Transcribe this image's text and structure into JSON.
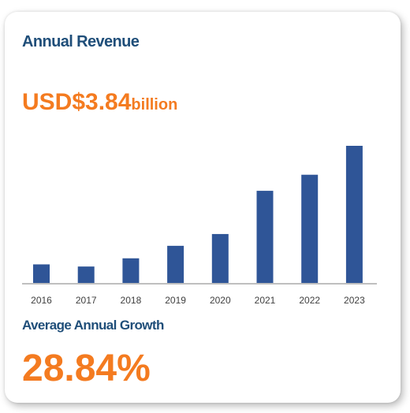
{
  "card": {
    "title": "Annual Revenue",
    "revenue_value": "USD$3.84",
    "revenue_unit": "billion",
    "growth_label": "Average Annual Growth",
    "growth_value": "28.84%"
  },
  "colors": {
    "title": "#1f4e79",
    "accent": "#f47b20",
    "bar": "#2f5597",
    "axis": "#bfbfbf"
  },
  "chart_data": {
    "type": "bar",
    "categories": [
      "2016",
      "2017",
      "2018",
      "2019",
      "2020",
      "2021",
      "2022",
      "2023"
    ],
    "values": [
      0.52,
      0.46,
      0.69,
      1.04,
      1.37,
      2.58,
      3.03,
      3.84
    ],
    "ylim": [
      0,
      3.84
    ],
    "grid": false,
    "legend": "none"
  }
}
